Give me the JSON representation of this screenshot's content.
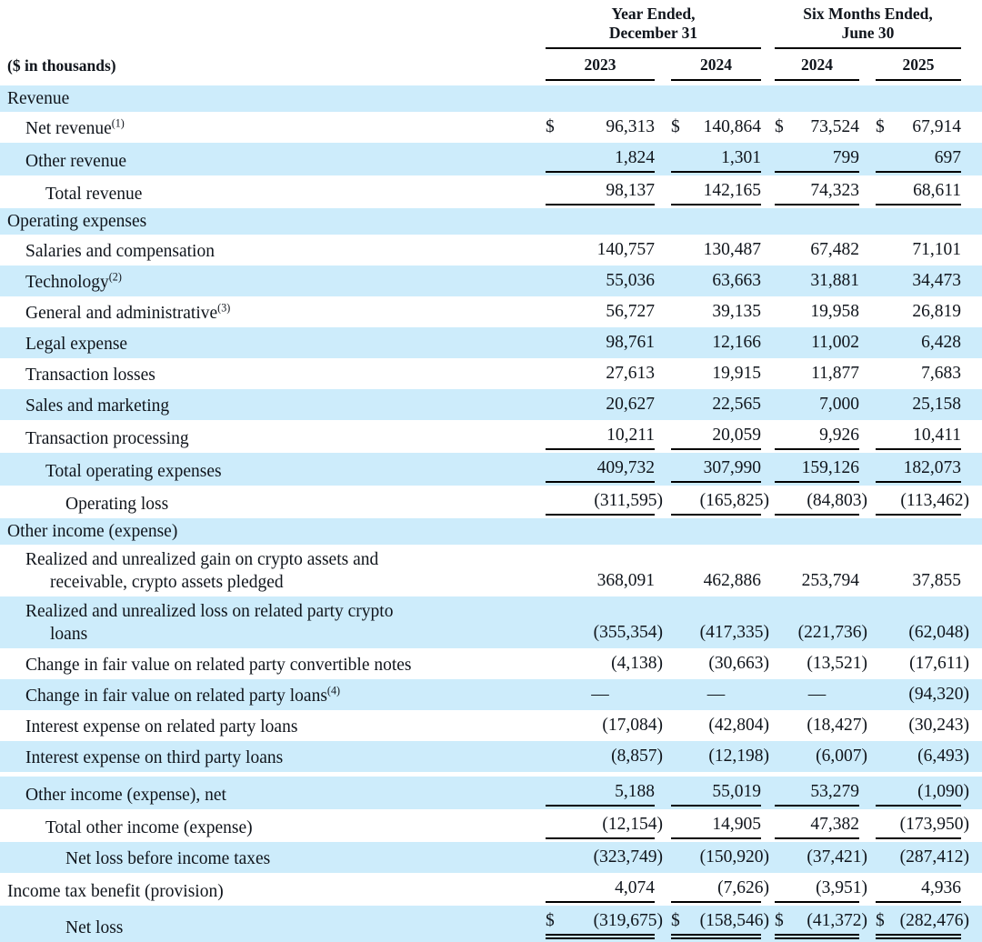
{
  "header": {
    "unit_label": "($ in thousands)",
    "group1": {
      "line1": "Year Ended,",
      "line2": "December 31"
    },
    "group2": {
      "line1": "Six Months Ended,",
      "line2": "June 30"
    },
    "years": [
      "2023",
      "2024",
      "2024",
      "2025"
    ]
  },
  "table": {
    "shade_color": "#cdecfb",
    "rows": [
      {
        "label": "Revenue",
        "indent": 0,
        "section": true,
        "shade": true,
        "values": []
      },
      {
        "label": "Net revenue",
        "sup": "(1)",
        "indent": 1,
        "shade": false,
        "dollar": true,
        "values": [
          "96,313",
          "140,864",
          "73,524",
          "67,914"
        ]
      },
      {
        "label": "Other revenue",
        "indent": 1,
        "shade": true,
        "rule": "single",
        "values": [
          "1,824",
          "1,301",
          "799",
          "697"
        ]
      },
      {
        "label": "Total revenue",
        "indent": 2,
        "shade": false,
        "rule": "single",
        "values": [
          "98,137",
          "142,165",
          "74,323",
          "68,611"
        ]
      },
      {
        "label": "Operating expenses",
        "indent": 0,
        "section": true,
        "shade": true,
        "values": []
      },
      {
        "label": "Salaries and compensation",
        "indent": 1,
        "shade": false,
        "values": [
          "140,757",
          "130,487",
          "67,482",
          "71,101"
        ]
      },
      {
        "label": "Technology",
        "sup": "(2)",
        "indent": 1,
        "shade": true,
        "values": [
          "55,036",
          "63,663",
          "31,881",
          "34,473"
        ]
      },
      {
        "label": "General and administrative",
        "sup": "(3)",
        "indent": 1,
        "shade": false,
        "values": [
          "56,727",
          "39,135",
          "19,958",
          "26,819"
        ]
      },
      {
        "label": "Legal expense",
        "indent": 1,
        "shade": true,
        "values": [
          "98,761",
          "12,166",
          "11,002",
          "6,428"
        ]
      },
      {
        "label": "Transaction losses",
        "indent": 1,
        "shade": false,
        "values": [
          "27,613",
          "19,915",
          "11,877",
          "7,683"
        ]
      },
      {
        "label": "Sales and marketing",
        "indent": 1,
        "shade": true,
        "values": [
          "20,627",
          "22,565",
          "7,000",
          "25,158"
        ]
      },
      {
        "label": "Transaction processing",
        "indent": 1,
        "shade": false,
        "rule": "single",
        "values": [
          "10,211",
          "20,059",
          "9,926",
          "10,411"
        ]
      },
      {
        "label": "Total operating expenses",
        "indent": 2,
        "shade": true,
        "rule": "single",
        "values": [
          "409,732",
          "307,990",
          "159,126",
          "182,073"
        ]
      },
      {
        "label": "Operating loss",
        "indent": 3,
        "shade": false,
        "rule": "single",
        "values": [
          "(311,595)",
          "(165,825)",
          "(84,803)",
          "(113,462)"
        ]
      },
      {
        "label": "Other income (expense)",
        "indent": 0,
        "section": true,
        "shade": true,
        "values": []
      },
      {
        "label": "Realized and unrealized gain on crypto assets and",
        "label2": "receivable, crypto assets pledged",
        "indent": 1,
        "shade": false,
        "values": [
          "368,091",
          "462,886",
          "253,794",
          "37,855"
        ]
      },
      {
        "label": "Realized and unrealized loss on related party crypto",
        "label2": "loans",
        "indent": 1,
        "shade": true,
        "values": [
          "(355,354)",
          "(417,335)",
          "(221,736)",
          "(62,048)"
        ]
      },
      {
        "label": "Change in fair value on related party convertible notes",
        "indent": 1,
        "shade": false,
        "values": [
          "(4,138)",
          "(30,663)",
          "(13,521)",
          "(17,611)"
        ]
      },
      {
        "label": "Change in fair value on related party loans",
        "sup": "(4)",
        "indent": 1,
        "shade": true,
        "values": [
          "—",
          "—",
          "—",
          "(94,320)"
        ]
      },
      {
        "label": "Interest expense on related party loans",
        "indent": 1,
        "shade": false,
        "values": [
          "(17,084)",
          "(42,804)",
          "(18,427)",
          "(30,243)"
        ]
      },
      {
        "label": "Interest expense on third party loans",
        "indent": 1,
        "shade": true,
        "values": [
          "(8,857)",
          "(12,198)",
          "(6,007)",
          "(6,493)"
        ]
      },
      {
        "label": "Other income (expense), net",
        "indent": 1,
        "shade": true,
        "gap_above": true,
        "rule": "single",
        "values": [
          "5,188",
          "55,019",
          "53,279",
          "(1,090)"
        ]
      },
      {
        "label": "Total other income (expense)",
        "indent": 2,
        "shade": false,
        "rule": "single",
        "values": [
          "(12,154)",
          "14,905",
          "47,382",
          "(173,950)"
        ]
      },
      {
        "label": "Net loss before income taxes",
        "indent": 3,
        "shade": true,
        "values": [
          "(323,749)",
          "(150,920)",
          "(37,421)",
          "(287,412)"
        ]
      },
      {
        "label": "Income tax benefit (provision)",
        "indent": 0,
        "shade": false,
        "rule": "single",
        "values": [
          "4,074",
          "(7,626)",
          "(3,951)",
          "4,936"
        ]
      },
      {
        "label": "Net loss",
        "indent": 3,
        "shade": true,
        "dollar": true,
        "rule": "double",
        "values": [
          "(319,675)",
          "(158,546)",
          "(41,372)",
          "(282,476)"
        ]
      }
    ]
  }
}
